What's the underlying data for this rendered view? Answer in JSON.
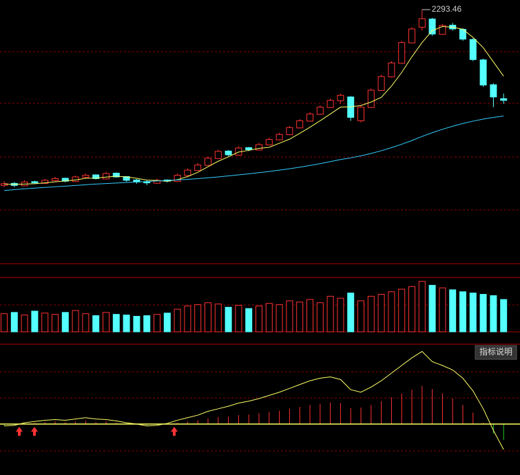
{
  "chart_data": {
    "type": "candlestick",
    "up_color": "#ff3232",
    "down_color": "#54ffff",
    "high_label": "2293.46",
    "open": [
      1260,
      1272,
      1258,
      1282,
      1272,
      1288,
      1302,
      1283,
      1308,
      1322,
      1298,
      1332,
      1312,
      1292,
      1282,
      1273,
      1292,
      1283,
      1318,
      1348,
      1378,
      1418,
      1462,
      1438,
      1482,
      1468,
      1498,
      1528,
      1558,
      1598,
      1638,
      1678,
      1718,
      1758,
      1780,
      1640,
      1718,
      1818,
      1898,
      1978,
      2098,
      2190,
      2238,
      2148,
      2202,
      2178,
      2118,
      1998,
      1852,
      1770
    ],
    "high": [
      1285,
      1280,
      1290,
      1288,
      1298,
      1310,
      1305,
      1318,
      1330,
      1325,
      1340,
      1336,
      1315,
      1298,
      1290,
      1300,
      1296,
      1330,
      1360,
      1392,
      1430,
      1470,
      1468,
      1490,
      1486,
      1510,
      1540,
      1570,
      1610,
      1650,
      1690,
      1730,
      1770,
      1800,
      1785,
      1730,
      1830,
      1910,
      1990,
      2110,
      2190,
      2293.46,
      2245,
      2210,
      2215,
      2185,
      2125,
      2005,
      1860,
      1800
    ],
    "low": [
      1250,
      1250,
      1255,
      1268,
      1270,
      1285,
      1278,
      1280,
      1302,
      1295,
      1295,
      1305,
      1282,
      1270,
      1262,
      1270,
      1278,
      1280,
      1315,
      1345,
      1375,
      1415,
      1432,
      1435,
      1462,
      1465,
      1495,
      1525,
      1555,
      1595,
      1635,
      1675,
      1715,
      1740,
      1640,
      1630,
      1715,
      1815,
      1895,
      1975,
      2095,
      2170,
      2140,
      2145,
      2170,
      2110,
      1990,
      1840,
      1720,
      1740
    ],
    "close": [
      1270,
      1260,
      1280,
      1275,
      1290,
      1300,
      1285,
      1310,
      1320,
      1300,
      1330,
      1310,
      1290,
      1280,
      1275,
      1290,
      1285,
      1320,
      1350,
      1380,
      1420,
      1460,
      1440,
      1480,
      1470,
      1500,
      1530,
      1560,
      1600,
      1640,
      1680,
      1720,
      1760,
      1790,
      1660,
      1720,
      1820,
      1900,
      1980,
      2100,
      2180,
      2240,
      2150,
      2200,
      2180,
      2120,
      2000,
      1850,
      1780,
      1760
    ],
    "ylim": [
      800,
      2350
    ],
    "ma_lines": [
      {
        "color": "#ffff66",
        "values": [
          1268,
          1266,
          1268,
          1270,
          1275,
          1281,
          1286,
          1292,
          1302,
          1303,
          1309,
          1314,
          1310,
          1302,
          1291,
          1289,
          1284,
          1294,
          1312,
          1337,
          1370,
          1402,
          1428,
          1456,
          1466,
          1478,
          1484,
          1508,
          1532,
          1566,
          1602,
          1640,
          1680,
          1720,
          1722,
          1730,
          1750,
          1778,
          1844,
          1924,
          2016,
          2100,
          2170,
          2194,
          2190,
          2178,
          2130,
          2070,
          1986,
          1902
        ]
      },
      {
        "color": "#33ccff",
        "values": [
          1230,
          1235,
          1240,
          1244,
          1248,
          1252,
          1256,
          1260,
          1264,
          1268,
          1271,
          1274,
          1277,
          1280,
          1283,
          1286,
          1289,
          1292,
          1296,
          1300,
          1305,
          1310,
          1316,
          1322,
          1328,
          1335,
          1342,
          1350,
          1358,
          1367,
          1377,
          1388,
          1400,
          1412,
          1422,
          1434,
          1448,
          1464,
          1482,
          1502,
          1524,
          1548,
          1570,
          1590,
          1608,
          1624,
          1638,
          1650,
          1660,
          1668
        ]
      }
    ],
    "volume": [
      28,
      30,
      26,
      32,
      29,
      27,
      30,
      33,
      28,
      25,
      30,
      27,
      26,
      24,
      25,
      27,
      29,
      35,
      40,
      42,
      45,
      43,
      38,
      41,
      36,
      40,
      44,
      42,
      48,
      46,
      50,
      45,
      55,
      52,
      60,
      48,
      55,
      58,
      62,
      66,
      70,
      78,
      72,
      68,
      65,
      62,
      60,
      58,
      56,
      50
    ],
    "volume_ylim": [
      0,
      82
    ],
    "indicator_button": "指标说明",
    "macd_hist": [
      -2,
      -1,
      1,
      2,
      3,
      4,
      3,
      4,
      5,
      3,
      4,
      2,
      0,
      -1,
      -2,
      -1,
      0,
      2,
      4,
      6,
      9,
      11,
      12,
      14,
      15,
      17,
      19,
      21,
      24,
      27,
      30,
      32,
      34,
      33,
      25,
      26,
      30,
      36,
      42,
      48,
      54,
      60,
      55,
      48,
      40,
      30,
      18,
      2,
      -15,
      -25
    ],
    "macd_dif": [
      -3,
      -2,
      2,
      4,
      6,
      7,
      6,
      8,
      10,
      8,
      7,
      5,
      2,
      0,
      -3,
      -2,
      1,
      6,
      10,
      14,
      20,
      24,
      28,
      33,
      36,
      40,
      45,
      50,
      56,
      62,
      68,
      72,
      74,
      70,
      54,
      50,
      58,
      68,
      80,
      92,
      104,
      114,
      98,
      92,
      85,
      72,
      52,
      24,
      -10,
      -40
    ],
    "macd_ylim": [
      -80,
      120
    ]
  }
}
